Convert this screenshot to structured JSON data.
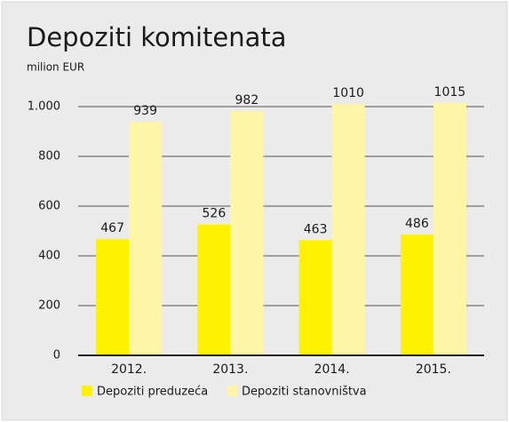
{
  "chart_data": {
    "type": "bar",
    "title": "Depoziti komitenata",
    "subtitle": "milion EUR",
    "categories": [
      "2012.",
      "2013.",
      "2014.",
      "2015."
    ],
    "series": [
      {
        "name": "Depoziti preduzeća",
        "color": "#fff200",
        "values": [
          467,
          526,
          463,
          486
        ]
      },
      {
        "name": "Depoziti stanovništva",
        "color": "#fff5a6",
        "values": [
          939,
          982,
          1010,
          1015
        ]
      }
    ],
    "ylim": [
      0,
      1000
    ],
    "yticks": [
      0,
      200,
      400,
      600,
      800,
      {
        "value": 1000,
        "label": "1.000"
      }
    ],
    "grid": true,
    "legend": "bottom"
  }
}
